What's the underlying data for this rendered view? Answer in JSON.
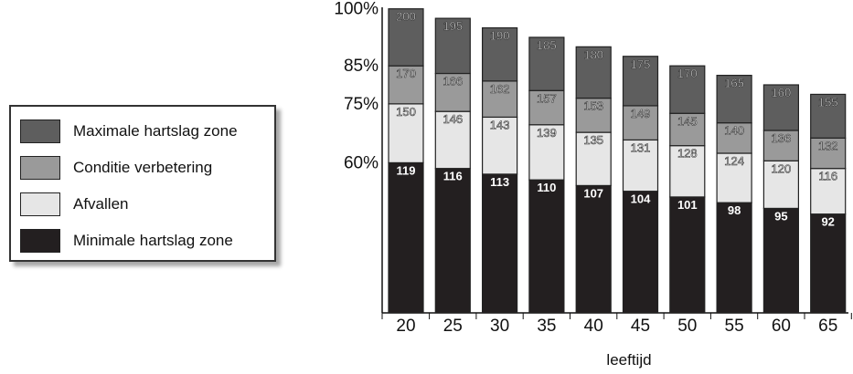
{
  "chart_data": {
    "type": "bar",
    "stacked": true,
    "categories": [
      "20",
      "25",
      "30",
      "35",
      "40",
      "45",
      "50",
      "55",
      "60",
      "65"
    ],
    "xlabel": "leeftijd",
    "ylabel": "",
    "y_tick_labels": [
      "60%",
      "75%",
      "85%",
      "100%"
    ],
    "series": [
      {
        "name": "Minimale hartslag zone",
        "color": "#231f20",
        "label_color": "#ffffff",
        "values": [
          119,
          116,
          113,
          110,
          107,
          104,
          101,
          98,
          95,
          92
        ]
      },
      {
        "name": "Afvallen",
        "color": "#e6e6e6",
        "label_color": "#ffffff",
        "values": [
          150,
          146,
          143,
          139,
          135,
          131,
          128,
          124,
          120,
          116
        ]
      },
      {
        "name": "Conditie verbetering",
        "color": "#9a9a9a",
        "label_color": "#ffffff",
        "values": [
          170,
          166,
          162,
          157,
          153,
          149,
          145,
          140,
          136,
          132
        ]
      },
      {
        "name": "Maximale hartslag zone",
        "color": "#5e5e5e",
        "label_color": "#ffffff",
        "values": [
          200,
          195,
          190,
          185,
          180,
          175,
          170,
          165,
          160,
          155
        ]
      }
    ],
    "grid": false,
    "legend_position": "left"
  }
}
